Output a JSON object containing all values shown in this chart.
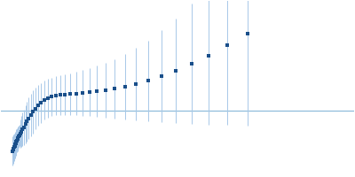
{
  "bg_color": "#ffffff",
  "line_color": "#a8c8e8",
  "marker_color": "#1a4f8a",
  "hline_color": "#7ab0d4",
  "hline_lw": 0.7,
  "marker_size": 2.5,
  "elinewidth": 0.7,
  "capsize": 0,
  "data": [
    {
      "q": 0.01,
      "iq2": -1.55,
      "err": 0.55
    },
    {
      "q": 0.011,
      "iq2": -1.5,
      "err": 0.55
    },
    {
      "q": 0.012,
      "iq2": -1.45,
      "err": 0.52
    },
    {
      "q": 0.013,
      "iq2": -1.4,
      "err": 0.52
    },
    {
      "q": 0.014,
      "iq2": -1.35,
      "err": 0.5
    },
    {
      "q": 0.015,
      "iq2": -1.3,
      "err": 0.5
    },
    {
      "q": 0.016,
      "iq2": -1.25,
      "err": 0.48
    },
    {
      "q": 0.017,
      "iq2": -1.2,
      "err": 0.48
    },
    {
      "q": 0.018,
      "iq2": -1.15,
      "err": 0.46
    },
    {
      "q": 0.019,
      "iq2": -1.1,
      "err": 0.46
    },
    {
      "q": 0.02,
      "iq2": -1.05,
      "err": 0.44
    },
    {
      "q": 0.021,
      "iq2": -1.0,
      "err": 0.44
    },
    {
      "q": 0.022,
      "iq2": -0.95,
      "err": 0.42
    },
    {
      "q": 0.024,
      "iq2": -0.88,
      "err": 0.55
    },
    {
      "q": 0.026,
      "iq2": -0.8,
      "err": 0.6
    },
    {
      "q": 0.028,
      "iq2": -0.72,
      "err": 0.65
    },
    {
      "q": 0.03,
      "iq2": -0.63,
      "err": 0.68
    },
    {
      "q": 0.033,
      "iq2": -0.52,
      "err": 0.72
    },
    {
      "q": 0.036,
      "iq2": -0.42,
      "err": 0.76
    },
    {
      "q": 0.039,
      "iq2": -0.3,
      "err": 0.8
    },
    {
      "q": 0.043,
      "iq2": -0.18,
      "err": 0.82
    },
    {
      "q": 0.047,
      "iq2": -0.05,
      "err": 0.82
    },
    {
      "q": 0.051,
      "iq2": 0.08,
      "err": 0.8
    },
    {
      "q": 0.056,
      "iq2": 0.2,
      "err": 0.78
    },
    {
      "q": 0.061,
      "iq2": 0.3,
      "err": 0.76
    },
    {
      "q": 0.067,
      "iq2": 0.4,
      "err": 0.75
    },
    {
      "q": 0.073,
      "iq2": 0.47,
      "err": 0.74
    },
    {
      "q": 0.08,
      "iq2": 0.53,
      "err": 0.74
    },
    {
      "q": 0.087,
      "iq2": 0.57,
      "err": 0.75
    },
    {
      "q": 0.095,
      "iq2": 0.6,
      "err": 0.76
    },
    {
      "q": 0.104,
      "iq2": 0.62,
      "err": 0.78
    },
    {
      "q": 0.113,
      "iq2": 0.64,
      "err": 0.8
    },
    {
      "q": 0.124,
      "iq2": 0.66,
      "err": 0.83
    },
    {
      "q": 0.135,
      "iq2": 0.68,
      "err": 0.87
    },
    {
      "q": 0.148,
      "iq2": 0.71,
      "err": 0.92
    },
    {
      "q": 0.161,
      "iq2": 0.74,
      "err": 0.98
    },
    {
      "q": 0.176,
      "iq2": 0.78,
      "err": 1.05
    },
    {
      "q": 0.193,
      "iq2": 0.84,
      "err": 1.14
    },
    {
      "q": 0.211,
      "iq2": 0.92,
      "err": 1.25
    },
    {
      "q": 0.231,
      "iq2": 1.02,
      "err": 1.38
    },
    {
      "q": 0.252,
      "iq2": 1.15,
      "err": 1.55
    },
    {
      "q": 0.276,
      "iq2": 1.32,
      "err": 1.76
    },
    {
      "q": 0.302,
      "iq2": 1.53,
      "err": 2.0
    },
    {
      "q": 0.33,
      "iq2": 1.8,
      "err": 2.3
    },
    {
      "q": 0.36,
      "iq2": 2.12,
      "err": 2.65
    },
    {
      "q": 0.394,
      "iq2": 2.5,
      "err": 3.05
    },
    {
      "q": 0.431,
      "iq2": 2.95,
      "err": 3.52
    }
  ],
  "xlim": [
    -0.01,
    0.62
  ],
  "ylim": [
    -2.5,
    4.2
  ],
  "hline_y": 0.0,
  "figsize": [
    4.0,
    2.0
  ],
  "dpi": 100
}
